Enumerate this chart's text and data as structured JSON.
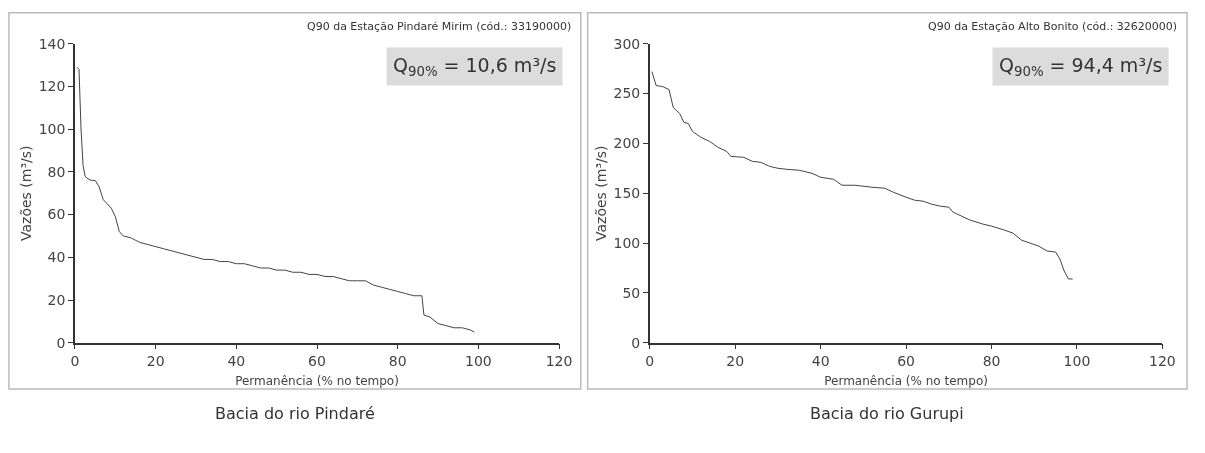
{
  "chart_data": [
    {
      "type": "line",
      "title": "Q90 da Estação Pindaré Mirim (cód.: 33190000)",
      "xlabel": "Permanência (% no tempo)",
      "ylabel": "Vazões (m³/s)",
      "annotations": [
        "Q$_{90%}$ = 10,6 m³/s",
        "Bacia do rio Pindaré"
      ],
      "xlim": [
        0,
        120
      ],
      "xticks": [
        0,
        20,
        40,
        60,
        80,
        100,
        120
      ],
      "ylim": [
        0,
        140
      ],
      "yticks": [
        0,
        20,
        40,
        60,
        80,
        100,
        120,
        140
      ],
      "marker": "none",
      "line_style": "solid",
      "series": [
        {
          "color": "#444444",
          "x": [
            0.5,
            1,
            1.5,
            2,
            2.5,
            3,
            4,
            5,
            6,
            7,
            8,
            9,
            10,
            11,
            12,
            14,
            16,
            18,
            20,
            22,
            24,
            26,
            28,
            30,
            32,
            34,
            36,
            38,
            40,
            42,
            44,
            46,
            48,
            50,
            52,
            54,
            56,
            58,
            60,
            62,
            64,
            66,
            68,
            70,
            72,
            74,
            76,
            78,
            80,
            82,
            84,
            86,
            86.5,
            88,
            90,
            92,
            94,
            96,
            98,
            99
          ],
          "values": [
            129,
            128,
            100,
            83,
            78,
            77,
            76,
            76,
            73,
            67,
            65,
            63,
            59,
            52,
            50,
            49,
            47,
            46,
            45,
            44,
            43,
            42,
            41,
            40,
            39,
            39,
            38,
            38,
            37,
            37,
            36,
            35,
            35,
            34,
            34,
            33,
            33,
            32,
            32,
            31,
            31,
            30,
            29,
            29,
            29,
            27,
            26,
            25,
            24,
            23,
            22,
            22,
            13,
            12,
            9,
            8,
            7,
            7,
            6,
            5
          ]
        }
      ]
    },
    {
      "type": "line",
      "title": "Q90 da Estação Alto Bonito (cód.: 32620000)",
      "xlabel": "Permanência (% no tempo)",
      "ylabel": "Vazões (m³/s)",
      "annotations": [
        "Q$_{90%}$ = 94,4 m³/s",
        "Bacia do rio Gurupi"
      ],
      "xlim": [
        0,
        120
      ],
      "xticks": [
        0,
        20,
        40,
        60,
        80,
        100,
        120
      ],
      "ylim": [
        0,
        300
      ],
      "yticks": [
        0,
        50,
        100,
        150,
        200,
        250,
        300
      ],
      "marker": "none",
      "line_style": "solid",
      "series": [
        {
          "color": "#444444",
          "x": [
            0.5,
            1.5,
            3,
            4.5,
            5.5,
            7,
            8,
            9,
            10,
            12,
            14,
            16,
            18,
            19,
            22,
            24,
            26,
            28,
            30,
            32,
            35,
            38,
            40,
            43,
            45,
            48,
            52,
            55,
            57,
            60,
            62,
            64,
            66,
            68,
            70,
            71,
            73,
            75,
            78,
            80,
            83,
            85,
            87,
            89,
            91,
            93,
            95,
            96,
            97,
            98,
            99
          ],
          "values": [
            272,
            258,
            257,
            254,
            236,
            230,
            221,
            220,
            212,
            206,
            202,
            196,
            192,
            187,
            186,
            182,
            181,
            177,
            175,
            174,
            173,
            170,
            166,
            164,
            158,
            158,
            156,
            155,
            151,
            146,
            143,
            142,
            139,
            137,
            136,
            131,
            127,
            123,
            119,
            117,
            113,
            110,
            103,
            100,
            97,
            92,
            91,
            84,
            72,
            64,
            64
          ]
        }
      ]
    }
  ]
}
